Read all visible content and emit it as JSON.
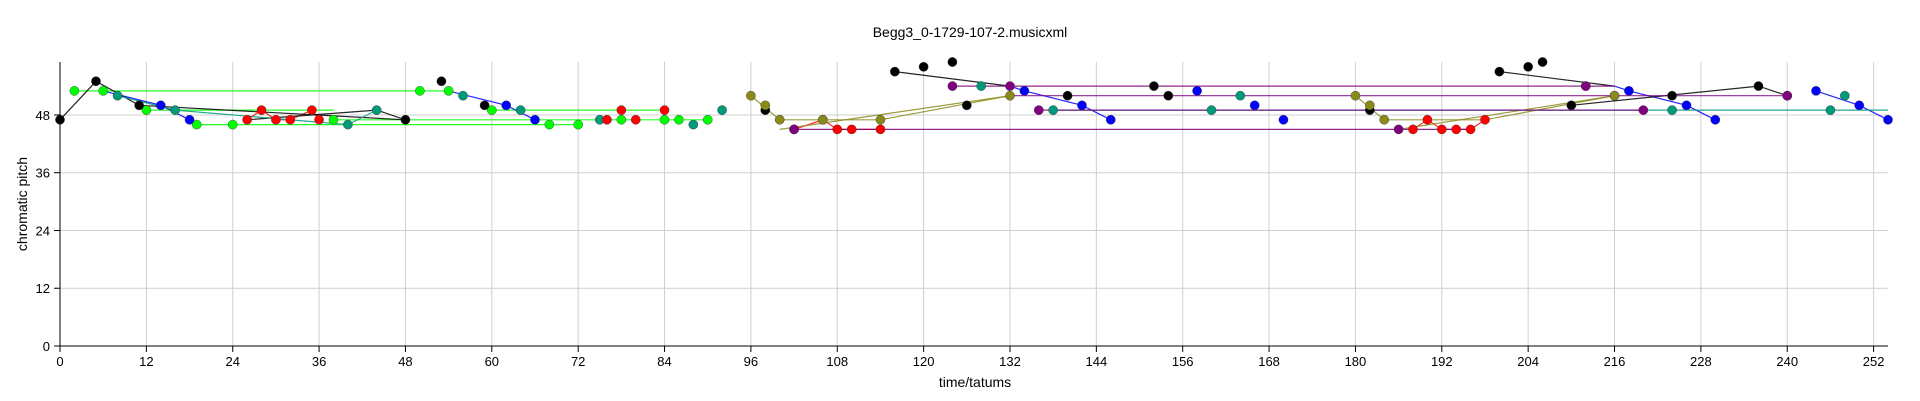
{
  "chart_data": {
    "type": "scatter",
    "title": "Begg3_0-1729-107-2.musicxml",
    "xlabel": "time/tatums",
    "ylabel": "chromatic pitch",
    "xlim": [
      0,
      254
    ],
    "ylim": [
      0,
      59
    ],
    "xticks": [
      0,
      12,
      24,
      36,
      48,
      60,
      72,
      84,
      96,
      108,
      120,
      132,
      144,
      156,
      168,
      180,
      192,
      204,
      216,
      228,
      240,
      252
    ],
    "yticks": [
      0,
      12,
      24,
      36,
      48
    ],
    "grid": true,
    "colors": {
      "green": "#00ff00",
      "teal": "#00997a",
      "blue": "#0000ff",
      "red": "#ff0000",
      "black": "#000000",
      "olive": "#8a8a1a",
      "purple": "#800080"
    },
    "series": [
      {
        "color": "#00ff00",
        "points": [
          [
            2,
            53
          ],
          [
            6,
            53
          ],
          [
            12,
            49
          ],
          [
            19,
            46
          ],
          [
            24,
            46
          ],
          [
            38,
            47
          ],
          [
            50,
            53
          ],
          [
            54,
            53
          ],
          [
            60,
            49
          ],
          [
            68,
            46
          ],
          [
            72,
            46
          ],
          [
            78,
            47
          ],
          [
            84,
            47
          ],
          [
            86,
            47
          ],
          [
            90,
            47
          ]
        ]
      },
      {
        "color": "#00997a",
        "points": [
          [
            8,
            52
          ],
          [
            16,
            49
          ],
          [
            40,
            46
          ],
          [
            44,
            49
          ],
          [
            56,
            52
          ],
          [
            64,
            49
          ],
          [
            75,
            47
          ],
          [
            88,
            46
          ],
          [
            92,
            49
          ],
          [
            128,
            54
          ],
          [
            138,
            49
          ],
          [
            160,
            49
          ],
          [
            164,
            52
          ],
          [
            212,
            54
          ],
          [
            216,
            52
          ],
          [
            224,
            49
          ],
          [
            246,
            49
          ],
          [
            248,
            52
          ]
        ]
      },
      {
        "color": "#0000ff",
        "points": [
          [
            14,
            50
          ],
          [
            18,
            47
          ],
          [
            62,
            50
          ],
          [
            66,
            47
          ],
          [
            134,
            53
          ],
          [
            142,
            50
          ],
          [
            146,
            47
          ],
          [
            158,
            53
          ],
          [
            166,
            50
          ],
          [
            170,
            47
          ],
          [
            218,
            53
          ],
          [
            226,
            50
          ],
          [
            230,
            47
          ],
          [
            244,
            53
          ],
          [
            250,
            50
          ],
          [
            254,
            47
          ]
        ]
      },
      {
        "color": "#ff0000",
        "points": [
          [
            26,
            47
          ],
          [
            28,
            49
          ],
          [
            30,
            47
          ],
          [
            32,
            47
          ],
          [
            35,
            49
          ],
          [
            36,
            47
          ],
          [
            76,
            47
          ],
          [
            78,
            49
          ],
          [
            80,
            47
          ],
          [
            84,
            49
          ],
          [
            102,
            45
          ],
          [
            106,
            47
          ],
          [
            108,
            45
          ],
          [
            110,
            45
          ],
          [
            114,
            45
          ],
          [
            188,
            45
          ],
          [
            190,
            47
          ],
          [
            192,
            45
          ],
          [
            194,
            45
          ],
          [
            196,
            45
          ],
          [
            198,
            47
          ]
        ]
      },
      {
        "color": "#000000",
        "points": [
          [
            0,
            47
          ],
          [
            5,
            55
          ],
          [
            11,
            50
          ],
          [
            48,
            47
          ],
          [
            53,
            55
          ],
          [
            59,
            50
          ],
          [
            98,
            49
          ],
          [
            116,
            57
          ],
          [
            120,
            58
          ],
          [
            124,
            59
          ],
          [
            126,
            50
          ],
          [
            140,
            52
          ],
          [
            152,
            54
          ],
          [
            154,
            52
          ],
          [
            182,
            49
          ],
          [
            200,
            57
          ],
          [
            204,
            58
          ],
          [
            206,
            59
          ],
          [
            210,
            50
          ],
          [
            224,
            52
          ],
          [
            236,
            54
          ],
          [
            240,
            52
          ]
        ]
      },
      {
        "color": "#8a8a1a",
        "points": [
          [
            96,
            52
          ],
          [
            98,
            50
          ],
          [
            100,
            47
          ],
          [
            106,
            47
          ],
          [
            114,
            47
          ],
          [
            132,
            52
          ],
          [
            180,
            52
          ],
          [
            182,
            50
          ],
          [
            184,
            47
          ],
          [
            216,
            52
          ]
        ]
      },
      {
        "color": "#800080",
        "points": [
          [
            102,
            45
          ],
          [
            124,
            54
          ],
          [
            132,
            54
          ],
          [
            136,
            49
          ],
          [
            186,
            45
          ],
          [
            212,
            54
          ],
          [
            220,
            49
          ],
          [
            240,
            52
          ]
        ]
      }
    ],
    "segments": [
      {
        "color": "#00ff00",
        "points": [
          [
            2,
            53
          ],
          [
            54,
            53
          ]
        ]
      },
      {
        "color": "#00ff00",
        "points": [
          [
            12,
            49
          ],
          [
            38,
            49
          ]
        ]
      },
      {
        "color": "#00ff00",
        "points": [
          [
            19,
            46
          ],
          [
            72,
            46
          ]
        ]
      },
      {
        "color": "#00ff00",
        "points": [
          [
            38,
            47
          ],
          [
            90,
            47
          ]
        ]
      },
      {
        "color": "#00ff00",
        "points": [
          [
            60,
            49
          ],
          [
            84,
            49
          ]
        ]
      },
      {
        "color": "#0000ff",
        "points": [
          [
            6,
            53
          ],
          [
            14,
            50
          ],
          [
            18,
            47
          ]
        ]
      },
      {
        "color": "#0000ff",
        "points": [
          [
            54,
            53
          ],
          [
            62,
            50
          ],
          [
            66,
            47
          ]
        ]
      },
      {
        "color": "#0000ff",
        "points": [
          [
            132,
            54
          ],
          [
            134,
            53
          ],
          [
            142,
            50
          ],
          [
            146,
            47
          ]
        ]
      },
      {
        "color": "#0000ff",
        "points": [
          [
            216,
            54
          ],
          [
            218,
            53
          ],
          [
            226,
            50
          ],
          [
            230,
            47
          ]
        ]
      },
      {
        "color": "#0000ff",
        "points": [
          [
            244,
            53
          ],
          [
            250,
            50
          ],
          [
            254,
            47
          ]
        ]
      },
      {
        "color": "#ff0000",
        "points": [
          [
            26,
            47
          ],
          [
            28,
            49
          ],
          [
            30,
            47
          ],
          [
            32,
            47
          ],
          [
            35,
            49
          ],
          [
            36,
            47
          ]
        ]
      },
      {
        "color": "#ff0000",
        "points": [
          [
            102,
            45
          ],
          [
            106,
            47
          ],
          [
            108,
            45
          ],
          [
            114,
            45
          ]
        ]
      },
      {
        "color": "#ff0000",
        "points": [
          [
            188,
            45
          ],
          [
            190,
            47
          ],
          [
            192,
            45
          ],
          [
            196,
            45
          ],
          [
            198,
            47
          ]
        ]
      },
      {
        "color": "#000000",
        "points": [
          [
            0,
            47
          ],
          [
            5,
            55
          ],
          [
            11,
            50
          ],
          [
            48,
            47
          ]
        ]
      },
      {
        "color": "#000000",
        "points": [
          [
            116,
            57
          ],
          [
            132,
            54
          ]
        ]
      },
      {
        "color": "#000000",
        "points": [
          [
            200,
            57
          ],
          [
            216,
            54
          ]
        ]
      },
      {
        "color": "#000000",
        "points": [
          [
            210,
            50
          ],
          [
            236,
            54
          ],
          [
            240,
            52
          ]
        ]
      },
      {
        "color": "#000000",
        "points": [
          [
            26,
            47
          ],
          [
            44,
            49
          ],
          [
            48,
            47
          ]
        ]
      },
      {
        "color": "#00997a",
        "points": [
          [
            8,
            52
          ],
          [
            16,
            49
          ],
          [
            40,
            46
          ],
          [
            44,
            49
          ]
        ]
      },
      {
        "color": "#00997a",
        "points": [
          [
            138,
            49
          ],
          [
            254,
            49
          ]
        ]
      },
      {
        "color": "#8a8a1a",
        "points": [
          [
            96,
            52
          ],
          [
            100,
            47
          ],
          [
            114,
            47
          ],
          [
            132,
            52
          ]
        ]
      },
      {
        "color": "#8a8a1a",
        "points": [
          [
            100,
            45
          ],
          [
            132,
            52
          ]
        ]
      },
      {
        "color": "#8a8a1a",
        "points": [
          [
            180,
            52
          ],
          [
            184,
            47
          ],
          [
            198,
            47
          ],
          [
            216,
            52
          ]
        ]
      },
      {
        "color": "#8a8a1a",
        "points": [
          [
            186,
            45
          ],
          [
            216,
            52
          ]
        ]
      },
      {
        "color": "#800080",
        "points": [
          [
            102,
            45
          ],
          [
            196,
            45
          ]
        ]
      },
      {
        "color": "#800080",
        "points": [
          [
            124,
            54
          ],
          [
            216,
            54
          ]
        ]
      },
      {
        "color": "#800080",
        "points": [
          [
            132,
            52
          ],
          [
            240,
            52
          ]
        ]
      },
      {
        "color": "#800080",
        "points": [
          [
            136,
            49
          ],
          [
            220,
            49
          ]
        ]
      }
    ]
  }
}
